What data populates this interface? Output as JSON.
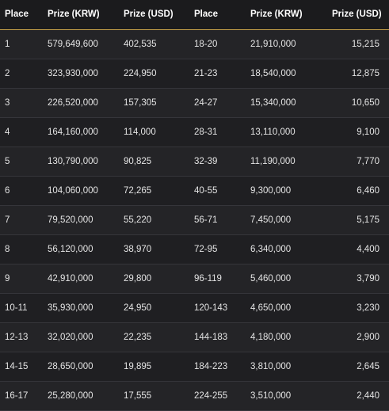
{
  "table": {
    "headers": [
      "Place",
      "Prize (KRW)",
      "Prize (USD)",
      "Place",
      "Prize (KRW)",
      "Prize (USD)"
    ],
    "rows": [
      [
        "1",
        "579,649,600",
        "402,535",
        "18-20",
        "21,910,000",
        "15,215"
      ],
      [
        "2",
        "323,930,000",
        "224,950",
        "21-23",
        "18,540,000",
        "12,875"
      ],
      [
        "3",
        "226,520,000",
        "157,305",
        "24-27",
        "15,340,000",
        "10,650"
      ],
      [
        "4",
        "164,160,000",
        "114,000",
        "28-31",
        "13,110,000",
        "9,100"
      ],
      [
        "5",
        "130,790,000",
        "90,825",
        "32-39",
        "11,190,000",
        "7,770"
      ],
      [
        "6",
        "104,060,000",
        "72,265",
        "40-55",
        "9,300,000",
        "6,460"
      ],
      [
        "7",
        "79,520,000",
        "55,220",
        "56-71",
        "7,450,000",
        "5,175"
      ],
      [
        "8",
        "56,120,000",
        "38,970",
        "72-95",
        "6,340,000",
        "4,400"
      ],
      [
        "9",
        "42,910,000",
        "29,800",
        "96-119",
        "5,460,000",
        "3,790"
      ],
      [
        "10-11",
        "35,930,000",
        "24,950",
        "120-143",
        "4,650,000",
        "3,230"
      ],
      [
        "12-13",
        "32,020,000",
        "22,235",
        "144-183",
        "4,180,000",
        "2,900"
      ],
      [
        "14-15",
        "28,650,000",
        "19,895",
        "184-223",
        "3,810,000",
        "2,645"
      ],
      [
        "16-17",
        "25,280,000",
        "17,555",
        "224-255",
        "3,510,000",
        "2,440"
      ]
    ]
  },
  "colors": {
    "background": "#1e1e20",
    "header_divider": "#c8a24a",
    "row_divider": "#35353a"
  }
}
